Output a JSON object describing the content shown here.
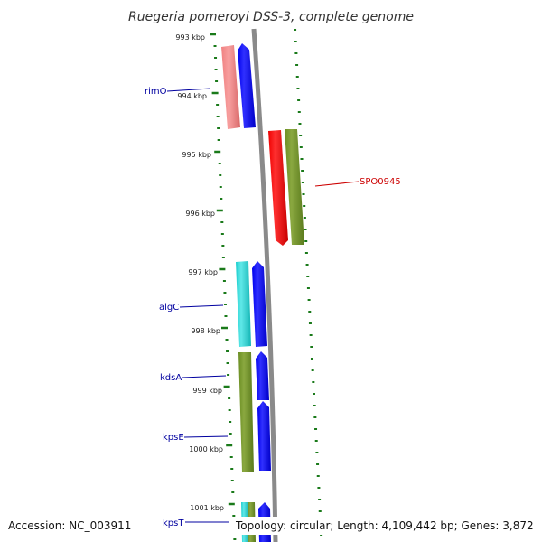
{
  "title": "Ruegeria pomeroyi DSS-3, complete genome",
  "accession": "Accession: NC_003911",
  "topology": "Topology: circular; Length: 4,109,442 bp; Genes: 3,872",
  "scale_labels": [
    "993 kbp",
    "994 kbp",
    "995 kbp",
    "996 kbp",
    "997 kbp",
    "998 kbp",
    "999 kbp",
    "1000 kbp",
    "1001 kbp"
  ],
  "gene_labels": [
    {
      "id": "rimO",
      "text": "rimO",
      "color": "#0000a0"
    },
    {
      "id": "SPO0945",
      "text": "SPO0945",
      "color": "#cc0000"
    },
    {
      "id": "algC",
      "text": "algC",
      "color": "#0000a0"
    },
    {
      "id": "kdsA",
      "text": "kdsA",
      "color": "#0000a0"
    },
    {
      "id": "kpsE",
      "text": "kpsE",
      "color": "#0000a0"
    },
    {
      "id": "kpsT",
      "text": "kpsT",
      "color": "#0000a0"
    }
  ],
  "colors": {
    "tick_green": "#1a7a1a",
    "backbone": "#8a8a8a",
    "blue": "#0000ee",
    "cyan": "#1ccfcf",
    "olive": "#6b8e23",
    "red": "#ee0000",
    "pink": "#f08080",
    "label_line_blue": "#0000a0",
    "label_line_red": "#cc0000"
  },
  "feature_tracks": [
    {
      "name": "rimO",
      "color": "pink"
    },
    {
      "name": "rimO-cds",
      "color": "blue"
    },
    {
      "name": "SPO0945-cds",
      "color": "red"
    },
    {
      "name": "SPO0945",
      "color": "olive"
    },
    {
      "name": "algC",
      "color": "cyan"
    },
    {
      "name": "algC-cds",
      "color": "blue"
    },
    {
      "name": "kdsA",
      "color": "olive"
    },
    {
      "name": "kdsA-cds",
      "color": "blue"
    },
    {
      "name": "kpsE-cds",
      "color": "blue"
    },
    {
      "name": "kpsT",
      "color": "cyan"
    },
    {
      "name": "kpsT-2",
      "color": "olive"
    },
    {
      "name": "kpsT-cds",
      "color": "blue"
    }
  ]
}
